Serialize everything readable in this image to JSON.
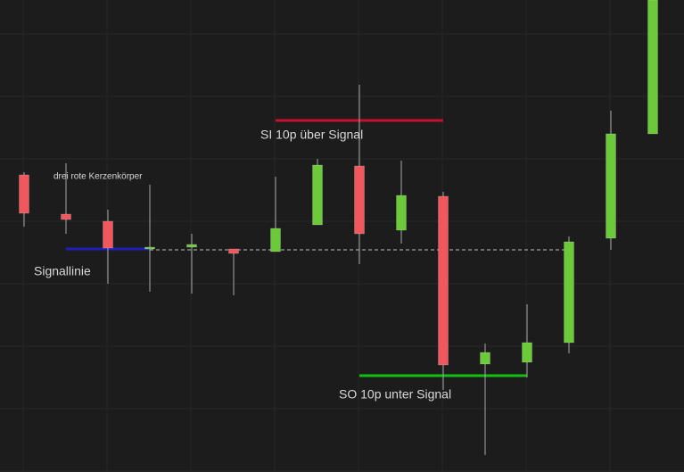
{
  "chart_data": {
    "type": "candlestick",
    "up_color": "#6cc93a",
    "down_color": "#f0585e",
    "wick_color": "#a8a8a8",
    "ylim": [
      0,
      52.9
    ],
    "candles": [
      {
        "open": 33.3,
        "high": 33.6,
        "low": 27.5,
        "close": 29.0
      },
      {
        "open": 28.9,
        "high": 34.6,
        "low": 26.7,
        "close": 28.3
      },
      {
        "open": 28.1,
        "high": 29.4,
        "low": 21.1,
        "close": 25.1
      },
      {
        "open": 25.0,
        "high": 32.2,
        "low": 20.2,
        "close": 25.2
      },
      {
        "open": 25.2,
        "high": 26.7,
        "low": 20.0,
        "close": 25.5
      },
      {
        "open": 25.0,
        "high": 25.0,
        "low": 19.8,
        "close": 24.5
      },
      {
        "open": 24.7,
        "high": 33.1,
        "low": 24.7,
        "close": 27.3
      },
      {
        "open": 27.7,
        "high": 35.1,
        "low": 27.7,
        "close": 34.4
      },
      {
        "open": 34.3,
        "high": 43.4,
        "low": 23.3,
        "close": 26.7
      },
      {
        "open": 27.1,
        "high": 34.9,
        "low": 25.6,
        "close": 31.0
      },
      {
        "open": 30.9,
        "high": 31.4,
        "low": 9.2,
        "close": 12.0
      },
      {
        "open": 12.1,
        "high": 14.4,
        "low": 1.9,
        "close": 13.4
      },
      {
        "open": 12.3,
        "high": 18.8,
        "low": 10.6,
        "close": 14.5
      },
      {
        "open": 14.5,
        "high": 26.4,
        "low": 13.3,
        "close": 25.8
      },
      {
        "open": 26.2,
        "high": 40.5,
        "low": 24.9,
        "close": 37.9
      },
      {
        "open": 37.9,
        "high": 52.9,
        "low": 37.9,
        "close": 52.9
      }
    ],
    "levels": [
      {
        "value": 24.9,
        "from": 3,
        "to": 13,
        "color": "#bdbdbd",
        "dashed": true
      },
      {
        "value": 25.0,
        "from": 1,
        "to": 3,
        "color": "#2020b8",
        "dashed": false
      },
      {
        "value": 39.4,
        "from": 6,
        "to": 10,
        "color": "#c8102e",
        "dashed": false
      },
      {
        "value": 10.8,
        "from": 8,
        "to": 12,
        "color": "#12c012",
        "dashed": false
      }
    ],
    "annotations": [
      "drei rote Kerzenkörper",
      "Signallinie",
      "SI 10p über Signal",
      "SO 10p unter Signal"
    ]
  }
}
